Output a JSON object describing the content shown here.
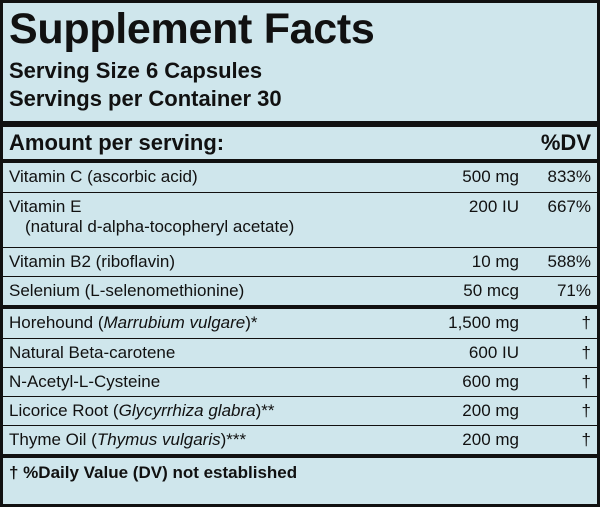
{
  "title": "Supplement Facts",
  "serving_size": "Serving Size 6 Capsules",
  "servings_per_container": "Servings per Container 30",
  "header": {
    "amount": "Amount per serving:",
    "dv": "%DV"
  },
  "sections": [
    {
      "rows": [
        {
          "name": [
            "Vitamin C (ascorbic acid)"
          ],
          "amount": "500 mg",
          "dv": "833%"
        },
        {
          "name": [
            "Vitamin E"
          ],
          "subtext": "(natural d-alpha-tocopheryl acetate)",
          "amount": "200 IU",
          "dv": "667%"
        },
        {
          "name": [
            "Vitamin B2 (riboflavin)"
          ],
          "amount": "10 mg",
          "dv": "588%"
        },
        {
          "name": [
            "Selenium (L-selenomethionine)"
          ],
          "amount": "50 mcg",
          "dv": "71%"
        }
      ]
    },
    {
      "rows": [
        {
          "name": [
            "Horehound (",
            "Marrubium vulgare",
            ")*"
          ],
          "amount": "1,500 mg",
          "dv": "†"
        },
        {
          "name": [
            "Natural Beta-carotene"
          ],
          "amount": "600 IU",
          "dv": "†"
        },
        {
          "name": [
            "N-Acetyl-L-Cysteine"
          ],
          "amount": "600 mg",
          "dv": "†"
        },
        {
          "name": [
            "Licorice Root (",
            "Glycyrrhiza glabra",
            ")**"
          ],
          "amount": "200 mg",
          "dv": "†"
        },
        {
          "name": [
            "Thyme Oil (",
            "Thymus vulgaris",
            ")***"
          ],
          "amount": "200 mg",
          "dv": "†"
        }
      ]
    }
  ],
  "footnote": "† %Daily Value (DV) not established"
}
